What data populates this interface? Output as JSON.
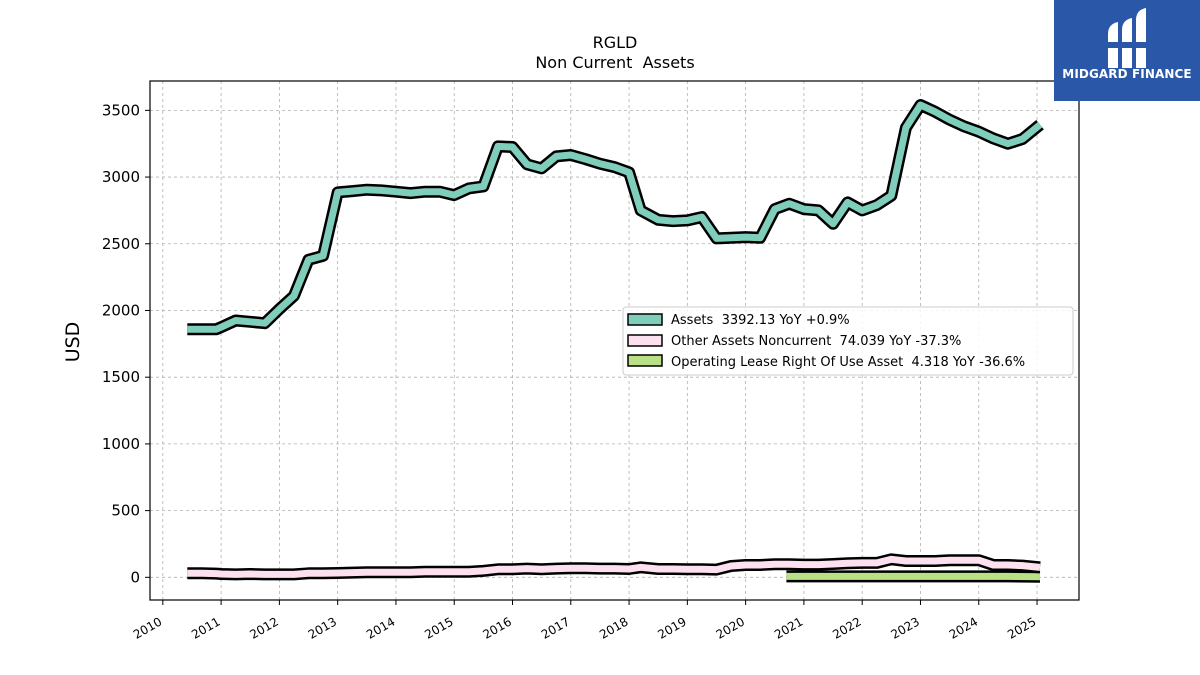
{
  "brand": {
    "name": "MIDGARD FINANCE",
    "logo_icon": "midgard-logo-icon",
    "bg_color": "#2a57a8"
  },
  "chart_data": {
    "type": "line",
    "title": "RGLD",
    "subtitle": "Non Current  Assets",
    "ylabel": "USD",
    "xlabel": "",
    "ylim": [
      -170,
      3720
    ],
    "xlim": [
      2009.78,
      2025.72
    ],
    "grid": true,
    "legend_position": "center-right",
    "yticks": [
      0,
      500,
      1000,
      1500,
      2000,
      2500,
      3000,
      3500
    ],
    "xticks": [
      "2010",
      "2011",
      "2012",
      "2013",
      "2014",
      "2015",
      "2016",
      "2017",
      "2018",
      "2019",
      "2020",
      "2021",
      "2022",
      "2023",
      "2024",
      "2025"
    ],
    "series": [
      {
        "name": "Assets",
        "legend": "Assets  3392.13 YoY +0.9%",
        "type": "line",
        "color": "#7fcdbb",
        "x": [
          2010.42,
          2010.67,
          2010.92,
          2011.0,
          2011.25,
          2011.5,
          2011.75,
          2012.0,
          2012.25,
          2012.5,
          2012.75,
          2013.0,
          2013.25,
          2013.5,
          2013.75,
          2014.0,
          2014.25,
          2014.5,
          2014.75,
          2015.0,
          2015.25,
          2015.5,
          2015.75,
          2016.0,
          2016.25,
          2016.5,
          2016.75,
          2017.0,
          2017.25,
          2017.5,
          2017.75,
          2018.0,
          2018.2,
          2018.5,
          2018.75,
          2019.0,
          2019.25,
          2019.5,
          2019.75,
          2020.0,
          2020.25,
          2020.5,
          2020.75,
          2021.0,
          2021.25,
          2021.5,
          2021.75,
          2022.0,
          2022.25,
          2022.5,
          2022.75,
          2023.0,
          2023.25,
          2023.5,
          2023.75,
          2024.0,
          2024.25,
          2024.5,
          2024.75,
          2025.05
        ],
        "values": [
          1860,
          1860,
          1860,
          1875,
          1925,
          1915,
          1905,
          2010,
          2110,
          2380,
          2410,
          2885,
          2895,
          2905,
          2900,
          2890,
          2880,
          2890,
          2890,
          2865,
          2915,
          2930,
          3230,
          3225,
          3095,
          3065,
          3155,
          3165,
          3135,
          3100,
          3075,
          3035,
          2750,
          2680,
          2670,
          2675,
          2700,
          2540,
          2545,
          2550,
          2545,
          2760,
          2800,
          2760,
          2750,
          2650,
          2810,
          2750,
          2790,
          2860,
          3370,
          3540,
          3490,
          3430,
          3380,
          3340,
          3290,
          3250,
          3285,
          3392.13
        ]
      },
      {
        "name": "Other Assets Noncurrent",
        "legend": "Other Assets Noncurrent  74.039 YoY -37.3%",
        "type": "line",
        "color": "#fde0ef",
        "x": [
          2010.42,
          2010.67,
          2010.92,
          2011.0,
          2011.25,
          2011.5,
          2011.75,
          2012.0,
          2012.25,
          2012.5,
          2012.75,
          2013.0,
          2013.25,
          2013.5,
          2013.75,
          2014.0,
          2014.25,
          2014.5,
          2014.75,
          2015.0,
          2015.25,
          2015.5,
          2015.75,
          2016.0,
          2016.25,
          2016.5,
          2016.75,
          2017.0,
          2017.25,
          2017.5,
          2017.75,
          2018.0,
          2018.2,
          2018.5,
          2018.75,
          2019.0,
          2019.25,
          2019.5,
          2019.75,
          2020.0,
          2020.25,
          2020.5,
          2020.75,
          2021.0,
          2021.25,
          2021.5,
          2021.75,
          2022.0,
          2022.25,
          2022.5,
          2022.75,
          2023.0,
          2023.25,
          2023.5,
          2023.75,
          2024.0,
          2024.25,
          2024.5,
          2024.75,
          2025.05
        ],
        "values": [
          30,
          30,
          28,
          25,
          22,
          25,
          22,
          22,
          22,
          30,
          30,
          32,
          35,
          38,
          38,
          38,
          38,
          42,
          42,
          42,
          42,
          48,
          60,
          60,
          65,
          60,
          65,
          68,
          68,
          65,
          65,
          62,
          75,
          62,
          62,
          60,
          60,
          58,
          85,
          92,
          92,
          98,
          98,
          95,
          95,
          100,
          105,
          108,
          108,
          135,
          122,
          122,
          122,
          128,
          128,
          128,
          92,
          92,
          88,
          74.039
        ]
      },
      {
        "name": "Operating Lease Right Of Use Asset",
        "legend": "Operating Lease Right Of Use Asset  4.318 YoY -36.6%",
        "type": "line",
        "color": "#b8e186",
        "x": [
          2020.7,
          2021.0,
          2021.5,
          2022.0,
          2022.5,
          2023.0,
          2023.5,
          2024.0,
          2024.5,
          2025.05
        ],
        "values": [
          6.8,
          6.8,
          6.8,
          6.8,
          6.8,
          6.8,
          6.8,
          6.8,
          6.8,
          4.318
        ]
      }
    ]
  }
}
